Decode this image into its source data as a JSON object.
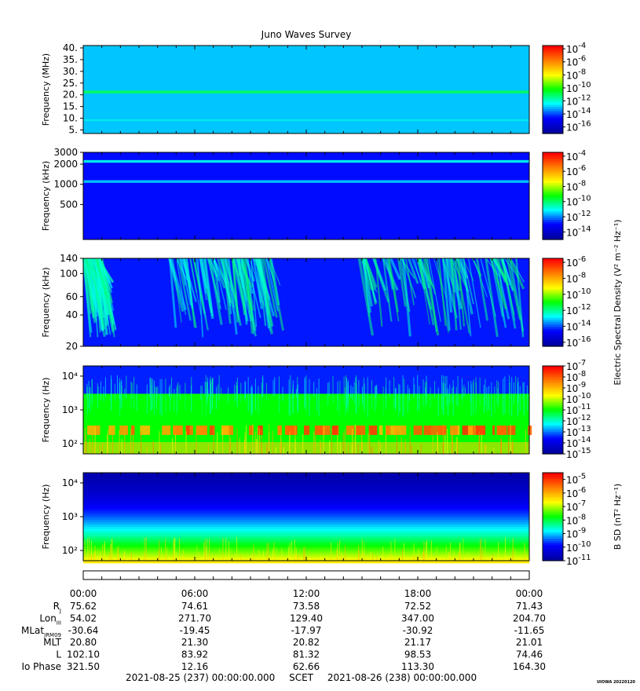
{
  "title": "Juno Waves Survey",
  "stamp": "UIOWA 20220120",
  "chart_data": [
    {
      "type": "heatmap",
      "panel": 1,
      "ylabel": "Frequency (MHz)",
      "yscale": "linear",
      "ylim": [
        3.5,
        41
      ],
      "yticks": [
        "5.",
        "10.",
        "15.",
        "20.",
        "25.",
        "30.",
        "35.",
        "40."
      ],
      "ytick_values": [
        5,
        10,
        15,
        20,
        25,
        30,
        35,
        40
      ],
      "colorbar_label": "",
      "colorbar_ticks": [
        "-4",
        "-6",
        "-8",
        "-10",
        "-12",
        "-14",
        "-16"
      ],
      "colorbar_range": [
        -17,
        -3.5
      ],
      "background_level": -13,
      "features": [
        {
          "kind": "band",
          "center": 21.2,
          "width": 1.2,
          "level": -11
        },
        {
          "kind": "band",
          "center": 9.2,
          "width": 0.5,
          "level": -12.2
        }
      ]
    },
    {
      "type": "heatmap",
      "panel": 2,
      "ylabel": "Frequency (kHz)",
      "yscale": "log",
      "ylim": [
        150,
        3000
      ],
      "yticks": [
        "500",
        "1000",
        "2000",
        "3000"
      ],
      "ytick_values": [
        500,
        1000,
        2000,
        3000
      ],
      "colorbar_label": "",
      "colorbar_ticks": [
        "-4",
        "-6",
        "-8",
        "-10",
        "-12",
        "-14"
      ],
      "colorbar_range": [
        -15,
        -3.5
      ],
      "background_level": -13,
      "features": [
        {
          "kind": "band",
          "center": 2200,
          "width": 200,
          "level": -11
        },
        {
          "kind": "band",
          "center": 1100,
          "width": 100,
          "level": -11.5
        }
      ]
    },
    {
      "type": "heatmap",
      "panel": 3,
      "ylabel": "Frequency (kHz)",
      "yscale": "log",
      "ylim": [
        20,
        140
      ],
      "yticks": [
        "20",
        "40",
        "60",
        "100",
        "140"
      ],
      "ytick_values": [
        20,
        40,
        60,
        100,
        140
      ],
      "colorbar_label": "Electric Spectral Density (V² m⁻² Hz⁻¹)",
      "colorbar_ticks": [
        "-6",
        "-8",
        "-10",
        "-12",
        "-14",
        "-16"
      ],
      "colorbar_range": [
        -16.5,
        -5.5
      ],
      "background_level": -14.5,
      "features": [
        {
          "kind": "emission",
          "t_start": 0.0,
          "t_end": 1.0,
          "level": -13
        },
        {
          "kind": "emission",
          "t_start": 4.5,
          "t_end": 10.2,
          "level": -13
        },
        {
          "kind": "emission",
          "t_start": 14.8,
          "t_end": 23.3,
          "level": -12.8
        }
      ]
    },
    {
      "type": "heatmap",
      "panel": 4,
      "ylabel": "Frequency (Hz)",
      "yscale": "log",
      "ylim": [
        50,
        20000
      ],
      "yticks": [
        "10²",
        "10³",
        "10⁴"
      ],
      "ytick_values": [
        100,
        1000,
        10000
      ],
      "colorbar_label": "",
      "colorbar_ticks": [
        "-7",
        "-8",
        "-9",
        "-10",
        "-11",
        "-12",
        "-13",
        "-14",
        "-15"
      ],
      "colorbar_range": [
        -15,
        -7
      ],
      "background_level": -11,
      "features": [
        {
          "kind": "hiss_cutoff",
          "freq": 3000,
          "level": -13.5
        },
        {
          "kind": "bursts",
          "freq": 250,
          "level": -8.5
        }
      ]
    },
    {
      "type": "heatmap",
      "panel": 5,
      "ylabel": "Frequency (Hz)",
      "yscale": "log",
      "ylim": [
        50,
        20000
      ],
      "yticks": [
        "10²",
        "10³",
        "10⁴"
      ],
      "ytick_values": [
        100,
        1000,
        10000
      ],
      "colorbar_label": "B SD (nT² Hz⁻¹)",
      "colorbar_ticks": [
        "-5",
        "-6",
        "-7",
        "-8",
        "-9",
        "-10",
        "-11"
      ],
      "colorbar_range": [
        -11,
        -4.5
      ],
      "background_level": -10,
      "features": [
        {
          "kind": "gradient",
          "high_freq_level": -10.8,
          "low_freq_level": -6.5
        }
      ]
    }
  ],
  "xaxis": {
    "range_hours": [
      0,
      24
    ],
    "tick_labels": [
      "00:00",
      "06:00",
      "12:00",
      "18:00",
      "00:00"
    ],
    "tick_hours": [
      0,
      6,
      12,
      18,
      24
    ]
  },
  "ephemeris": {
    "rows": [
      {
        "name": "R",
        "sub": "J",
        "values": [
          "75.62",
          "74.61",
          "73.58",
          "72.52",
          "71.43"
        ]
      },
      {
        "name": "Lon",
        "sub": "III",
        "values": [
          "54.02",
          "271.70",
          "129.40",
          "347.00",
          "204.70"
        ]
      },
      {
        "name": "MLat",
        "sub": "JRM09",
        "values": [
          "-30.64",
          "-19.45",
          "-17.97",
          "-30.92",
          "-11.65"
        ]
      },
      {
        "name": "MLT",
        "sub": "",
        "values": [
          "20.80",
          "21.30",
          "20.82",
          "21.17",
          "21.01"
        ]
      },
      {
        "name": "L",
        "sub": "",
        "values": [
          "102.10",
          "83.92",
          "81.32",
          "98.53",
          "74.46"
        ]
      },
      {
        "name": "Io Phase",
        "sub": "",
        "values": [
          "321.50",
          "12.16",
          "62.66",
          "113.30",
          "164.30"
        ]
      }
    ]
  },
  "footer": {
    "start": "2021-08-25 (237) 00:00:00.000",
    "label": "SCET",
    "end": "2021-08-26 (238) 00:00:00.000"
  },
  "colors": {
    "colormap": [
      "#0000a0",
      "#0000ff",
      "#00ffff",
      "#00ff00",
      "#ffff00",
      "#ff8000",
      "#ff0000"
    ]
  }
}
